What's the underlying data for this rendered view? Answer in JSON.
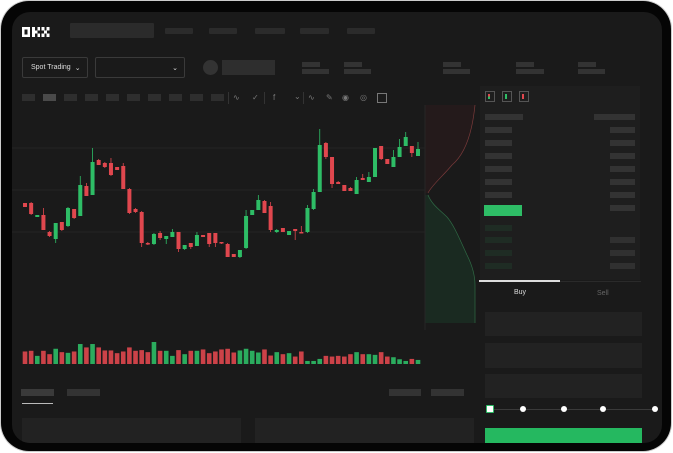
{
  "app": {
    "logo": "OKX"
  },
  "toolbar": {
    "market_dropdown": "Spot Trading"
  },
  "colors": {
    "up": "#2ebd66",
    "down": "#e0474e",
    "background": "#1a1a1a",
    "placeholder": "#2b2b2b"
  },
  "icons": [
    "indicator-icon",
    "indicator-icon",
    "function-icon",
    "line-icon",
    "pen-icon",
    "screenshot-icon",
    "settings-icon",
    "fullscreen-icon"
  ],
  "order_form": {
    "tabs": [
      "Buy",
      "Sell"
    ],
    "active_tab": "Buy",
    "slider_percent": 0
  },
  "chart_data": {
    "type": "candlestick",
    "candles": [
      [
        97,
        97,
        93,
        93
      ],
      [
        97,
        98,
        85,
        86
      ],
      [
        83,
        85,
        83,
        85
      ],
      [
        85,
        92,
        70,
        70
      ],
      [
        68,
        69,
        63,
        64
      ],
      [
        61,
        77,
        57,
        77
      ],
      [
        78,
        78,
        69,
        70
      ],
      [
        74,
        93,
        73,
        92
      ],
      [
        91,
        91,
        81,
        82
      ],
      [
        84,
        124,
        84,
        115
      ],
      [
        114,
        117,
        104,
        104
      ],
      [
        105,
        152,
        105,
        138
      ],
      [
        140,
        141,
        135,
        135
      ],
      [
        137,
        138,
        132,
        133
      ],
      [
        137,
        142,
        124,
        125
      ],
      [
        133,
        133,
        130,
        130
      ],
      [
        134,
        137,
        111,
        111
      ],
      [
        111,
        112,
        86,
        87
      ],
      [
        91,
        92,
        87,
        88
      ],
      [
        88,
        89,
        53,
        57
      ],
      [
        57,
        58,
        55,
        56
      ],
      [
        56,
        67,
        55,
        66
      ],
      [
        67,
        69,
        60,
        62
      ],
      [
        61,
        64,
        56,
        64
      ],
      [
        63,
        71,
        63,
        68
      ],
      [
        68,
        68,
        48,
        51
      ],
      [
        51,
        55,
        50,
        55
      ],
      [
        57,
        57,
        51,
        53
      ],
      [
        54,
        68,
        54,
        65
      ],
      [
        65,
        65,
        63,
        63
      ],
      [
        67,
        67,
        53,
        56
      ],
      [
        67,
        67,
        53,
        57
      ],
      [
        58,
        58,
        56,
        57
      ],
      [
        56,
        57,
        43,
        43
      ],
      [
        46,
        46,
        43,
        43
      ],
      [
        43,
        50,
        42,
        50
      ],
      [
        52,
        90,
        51,
        84
      ],
      [
        85,
        90,
        85,
        90
      ],
      [
        90,
        105,
        90,
        100
      ],
      [
        99,
        100,
        87,
        87
      ],
      [
        94,
        98,
        68,
        70
      ],
      [
        68,
        71,
        67,
        70
      ],
      [
        72,
        72,
        68,
        68
      ],
      [
        65,
        69,
        65,
        69
      ],
      [
        71,
        71,
        60,
        69
      ],
      [
        68,
        74,
        67,
        67
      ],
      [
        68,
        95,
        67,
        92
      ],
      [
        91,
        111,
        90,
        108
      ],
      [
        108,
        171,
        108,
        155
      ],
      [
        157,
        158,
        141,
        143
      ],
      [
        143,
        143,
        112,
        116
      ],
      [
        118,
        119,
        116,
        116
      ],
      [
        115,
        115,
        109,
        109
      ],
      [
        112,
        113,
        109,
        109
      ],
      [
        106,
        123,
        106,
        120
      ],
      [
        122,
        126,
        120,
        120
      ],
      [
        118,
        128,
        118,
        123
      ],
      [
        123,
        152,
        123,
        152
      ],
      [
        154,
        154,
        140,
        141
      ],
      [
        141,
        141,
        136,
        136
      ],
      [
        133,
        150,
        133,
        143
      ],
      [
        143,
        161,
        143,
        153
      ],
      [
        154,
        168,
        154,
        163
      ],
      [
        154,
        154,
        143,
        147
      ],
      [
        144,
        158,
        144,
        151
      ]
    ],
    "volume": [
      37,
      39,
      24,
      39,
      29,
      45,
      35,
      33,
      37,
      59,
      49,
      59,
      49,
      40,
      40,
      32,
      37,
      49,
      39,
      41,
      35,
      65,
      39,
      39,
      24,
      41,
      29,
      39,
      39,
      43,
      32,
      37,
      43,
      45,
      34,
      40,
      45,
      39,
      34,
      43,
      25,
      35,
      29,
      32,
      22,
      37,
      9,
      9,
      15,
      24,
      22,
      24,
      22,
      29,
      35,
      29,
      29,
      27,
      35,
      22,
      20,
      14,
      9,
      15,
      12
    ]
  }
}
